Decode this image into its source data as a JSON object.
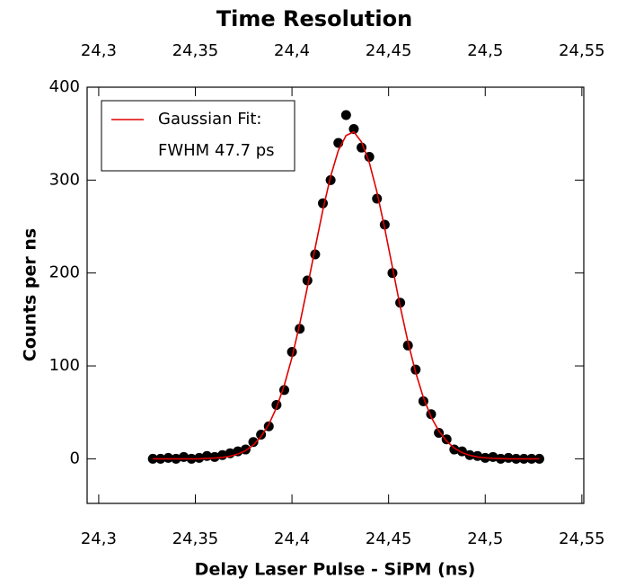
{
  "chart_data": {
    "type": "scatter",
    "title": "Time Resolution",
    "xlabel": "Delay Laser Pulse - SiPM (ns)",
    "ylabel": "Counts per ns",
    "annotation": "FWHM 47.7 ps",
    "xlim": [
      24.294,
      24.551
    ],
    "ylim": [
      -48,
      400
    ],
    "xticks": [
      {
        "value": 24.3,
        "label": "24,3"
      },
      {
        "value": 24.35,
        "label": "24,35"
      },
      {
        "value": 24.4,
        "label": "24,4"
      },
      {
        "value": 24.45,
        "label": "24,45"
      },
      {
        "value": 24.5,
        "label": "24,5"
      },
      {
        "value": 24.55,
        "label": "24,55"
      }
    ],
    "yticks": [
      0,
      100,
      200,
      300,
      400
    ],
    "grid": false,
    "legend": "upper left",
    "x": [
      24.328,
      24.332,
      24.336,
      24.34,
      24.344,
      24.348,
      24.352,
      24.356,
      24.36,
      24.364,
      24.368,
      24.372,
      24.376,
      24.38,
      24.384,
      24.388,
      24.392,
      24.396,
      24.4,
      24.404,
      24.408,
      24.412,
      24.416,
      24.42,
      24.424,
      24.428,
      24.432,
      24.436,
      24.44,
      24.444,
      24.448,
      24.452,
      24.456,
      24.46,
      24.464,
      24.468,
      24.472,
      24.476,
      24.48,
      24.484,
      24.488,
      24.492,
      24.496,
      24.5,
      24.504,
      24.508,
      24.512,
      24.516,
      24.52,
      24.524,
      24.528
    ],
    "series": [
      {
        "color": "#000000",
        "values": [
          0,
          0,
          1,
          0,
          2,
          0,
          1,
          3,
          2,
          4,
          6,
          8,
          10,
          18,
          26,
          35,
          58,
          74,
          115,
          140,
          192,
          220,
          275,
          300,
          340,
          370,
          355,
          335,
          325,
          280,
          252,
          200,
          168,
          122,
          96,
          62,
          48,
          28,
          21,
          10,
          8,
          4,
          3,
          1,
          2,
          0,
          1,
          0,
          0,
          0,
          0
        ]
      },
      {
        "name": "Gaussian Fit:",
        "type": "line",
        "color": "#e00000",
        "values": [
          0,
          0,
          0,
          0,
          0,
          0,
          0,
          0.4,
          0.8,
          1.5,
          2.8,
          5.1,
          8.8,
          14.8,
          23.9,
          37,
          55,
          79,
          109,
          145,
          185,
          227,
          268,
          304,
          332,
          348,
          352,
          341,
          319,
          287,
          248,
          206,
          164,
          126,
          93,
          66,
          45,
          30,
          19,
          11.5,
          6.7,
          3.8,
          2,
          1,
          0.5,
          0.2,
          0,
          0,
          0,
          0,
          0
        ]
      }
    ]
  }
}
